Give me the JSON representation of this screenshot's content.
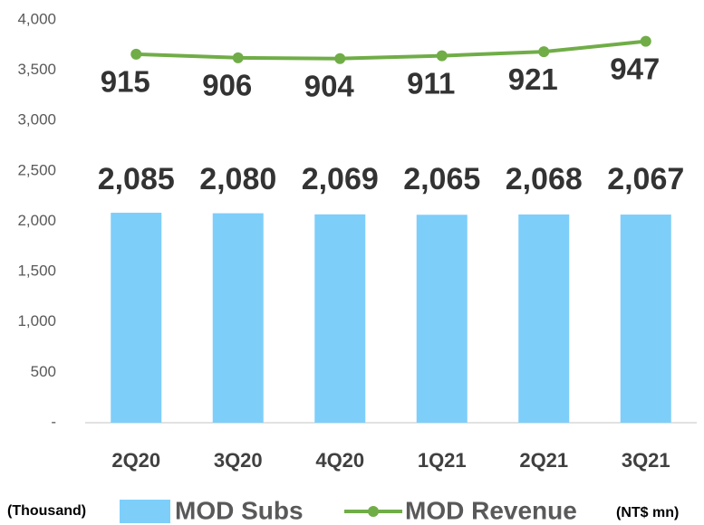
{
  "chart_data": {
    "type": "bar_line",
    "categories": [
      "2Q20",
      "3Q20",
      "4Q20",
      "1Q21",
      "2Q21",
      "3Q21"
    ],
    "series": [
      {
        "name": "MOD Subs",
        "type": "bar",
        "color": "#7ecefa",
        "values": [
          2085,
          2080,
          2069,
          2065,
          2068,
          2067
        ],
        "value_labels": [
          "2,085",
          "2,080",
          "2,069",
          "2,065",
          "2,068",
          "2,067"
        ]
      },
      {
        "name": "MOD Revenue",
        "type": "line",
        "axis": "y2",
        "color": "#70ad47",
        "values": [
          915,
          906,
          904,
          911,
          921,
          947
        ]
      }
    ],
    "ylim": [
      0,
      4000
    ],
    "yticks": [
      {
        "value": 0,
        "label": "-"
      },
      500,
      {
        "value": 1000,
        "label": "1,000"
      },
      {
        "value": 1500,
        "label": "1,500"
      },
      {
        "value": 2000,
        "label": "2,000"
      },
      {
        "value": 2500,
        "label": "2,500"
      },
      {
        "value": 3000,
        "label": "3,000"
      },
      {
        "value": 3500,
        "label": "3,500"
      },
      {
        "value": 4000,
        "label": "4,000"
      }
    ],
    "y2lim": [
      0,
      1000
    ],
    "y_unit_label": "(Thousand)",
    "y2_unit_label": "(NT$ mn)"
  }
}
